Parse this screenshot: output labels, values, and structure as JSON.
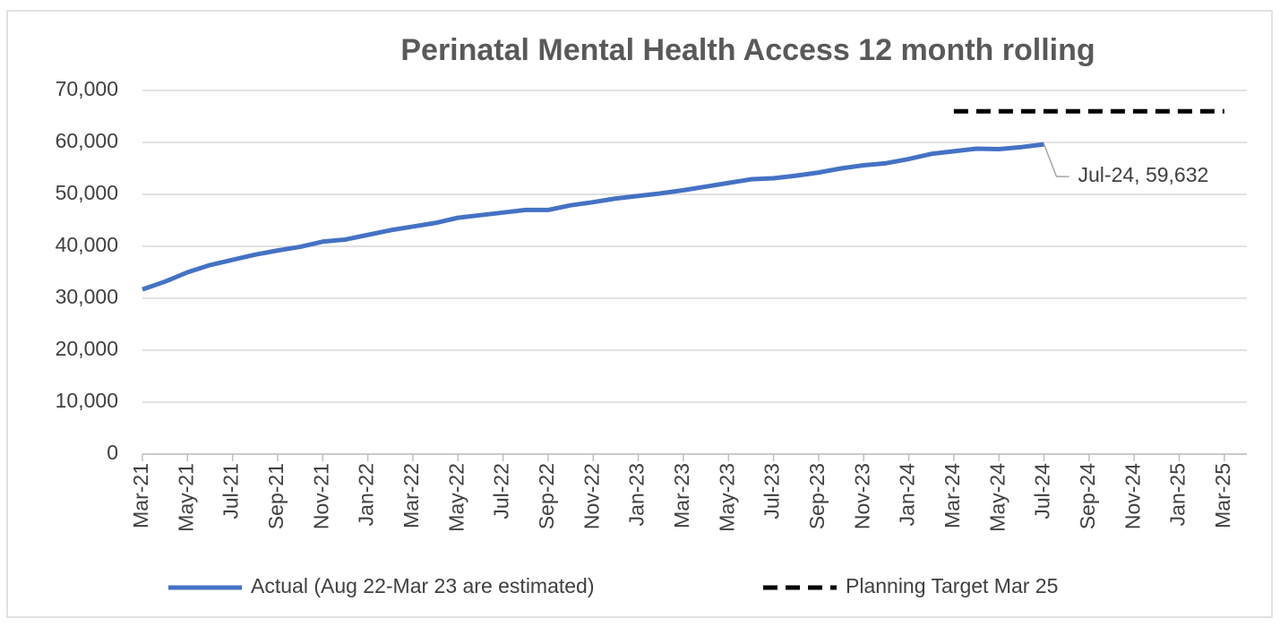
{
  "chart_data": {
    "type": "line",
    "title": "Perinatal Mental Health Access 12 month rolling",
    "annotation": "Jul-24, 59,632",
    "categories": [
      "Mar-21",
      null,
      "May-21",
      null,
      "Jul-21",
      null,
      "Sep-21",
      null,
      "Nov-21",
      null,
      "Jan-22",
      null,
      "Mar-22",
      null,
      "May-22",
      null,
      "Jul-22",
      null,
      "Sep-22",
      null,
      "Nov-22",
      null,
      "Jan-23",
      null,
      "Mar-23",
      null,
      "May-23",
      null,
      "Jul-23",
      null,
      "Sep-23",
      null,
      "Nov-23",
      null,
      "Jan-24",
      null,
      "Mar-24",
      null,
      "May-24",
      null,
      "Jul-24",
      null,
      "Sep-24",
      null,
      "Nov-24",
      null,
      "Jan-25",
      null,
      "Mar-25"
    ],
    "series": [
      {
        "name": "Actual (Aug 22-Mar 23 are estimated)",
        "color": "#4472c4",
        "dashed": false,
        "values": [
          31700,
          33200,
          35000,
          36400,
          37400,
          38400,
          39200,
          39900,
          40900,
          41300,
          42200,
          43100,
          43800,
          44500,
          45500,
          46000,
          46500,
          47000,
          47000,
          47900,
          48500,
          49200,
          49700,
          50200,
          50800,
          51500,
          52200,
          52900,
          53100,
          53600,
          54200,
          55000,
          55600,
          56000,
          56800,
          57800,
          58300,
          58800,
          58700,
          59100,
          59632,
          null,
          null,
          null,
          null,
          null,
          null,
          null,
          null
        ]
      },
      {
        "name": "Planning Target Mar 25",
        "color": "#000000",
        "dashed": true,
        "values": [
          null,
          null,
          null,
          null,
          null,
          null,
          null,
          null,
          null,
          null,
          null,
          null,
          null,
          null,
          null,
          null,
          null,
          null,
          null,
          null,
          null,
          null,
          null,
          null,
          null,
          null,
          null,
          null,
          null,
          null,
          null,
          null,
          null,
          null,
          null,
          null,
          66000,
          66000,
          66000,
          66000,
          66000,
          66000,
          66000,
          66000,
          66000,
          66000,
          66000,
          66000,
          66000
        ]
      }
    ],
    "ylim": [
      0,
      70000
    ],
    "yticks": [
      0,
      {
        "value": 10000,
        "label": "10,000"
      },
      {
        "value": 20000,
        "label": "20,000"
      },
      {
        "value": 30000,
        "label": "30,000"
      },
      {
        "value": 40000,
        "label": "40,000"
      },
      {
        "value": 50000,
        "label": "50,000"
      },
      {
        "value": 60000,
        "label": "60,000"
      },
      {
        "value": 70000,
        "label": "70,000"
      }
    ],
    "grid": true
  }
}
